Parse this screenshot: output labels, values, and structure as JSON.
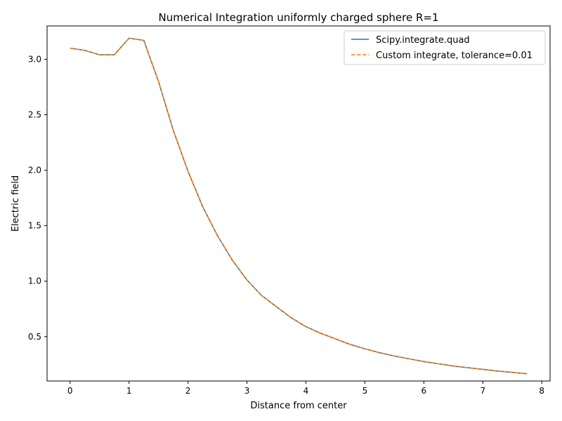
{
  "chart_data": {
    "type": "line",
    "title": "Numerical Integration uniformly charged sphere R=1",
    "xlabel": "Distance from center",
    "ylabel": "Electric field",
    "xlim": [
      -0.39,
      8.14
    ],
    "ylim": [
      0.1,
      3.3
    ],
    "xticks": [
      0,
      1,
      2,
      3,
      4,
      5,
      6,
      7,
      8
    ],
    "yticks": [
      0.5,
      1.0,
      1.5,
      2.0,
      2.5,
      3.0
    ],
    "xtick_labels": [
      "0",
      "1",
      "2",
      "3",
      "4",
      "5",
      "6",
      "7",
      "8"
    ],
    "ytick_labels": [
      "0.5",
      "1.0",
      "1.5",
      "2.0",
      "2.5",
      "3.0"
    ],
    "grid": false,
    "legend_position": "top-right",
    "x": [
      0,
      0.25,
      0.5,
      0.75,
      1.0,
      1.25,
      1.5,
      1.75,
      2.0,
      2.25,
      2.5,
      2.75,
      3.0,
      3.25,
      3.5,
      3.75,
      4.0,
      4.25,
      4.5,
      4.75,
      5.0,
      5.25,
      5.5,
      5.75,
      6.0,
      6.25,
      6.5,
      6.75,
      7.0,
      7.25,
      7.5,
      7.75
    ],
    "series": [
      {
        "name": "Scipy.integrate.quad",
        "color": "#1f77b4",
        "dash": "solid",
        "values": [
          3.1,
          3.08,
          3.04,
          3.04,
          3.19,
          3.17,
          2.8,
          2.36,
          1.99,
          1.67,
          1.41,
          1.19,
          1.01,
          0.87,
          0.77,
          0.67,
          0.59,
          0.53,
          0.48,
          0.43,
          0.39,
          0.355,
          0.325,
          0.3,
          0.275,
          0.255,
          0.235,
          0.22,
          0.205,
          0.19,
          0.178,
          0.165
        ]
      },
      {
        "name": "Custom integrate, tolerance=0.01",
        "color": "#ff7f0e",
        "dash": "dashed",
        "values": [
          3.1,
          3.08,
          3.04,
          3.04,
          3.19,
          3.17,
          2.8,
          2.36,
          1.99,
          1.67,
          1.41,
          1.19,
          1.01,
          0.87,
          0.77,
          0.67,
          0.59,
          0.53,
          0.48,
          0.43,
          0.39,
          0.355,
          0.325,
          0.3,
          0.275,
          0.255,
          0.235,
          0.22,
          0.205,
          0.19,
          0.178,
          0.165
        ]
      }
    ]
  }
}
